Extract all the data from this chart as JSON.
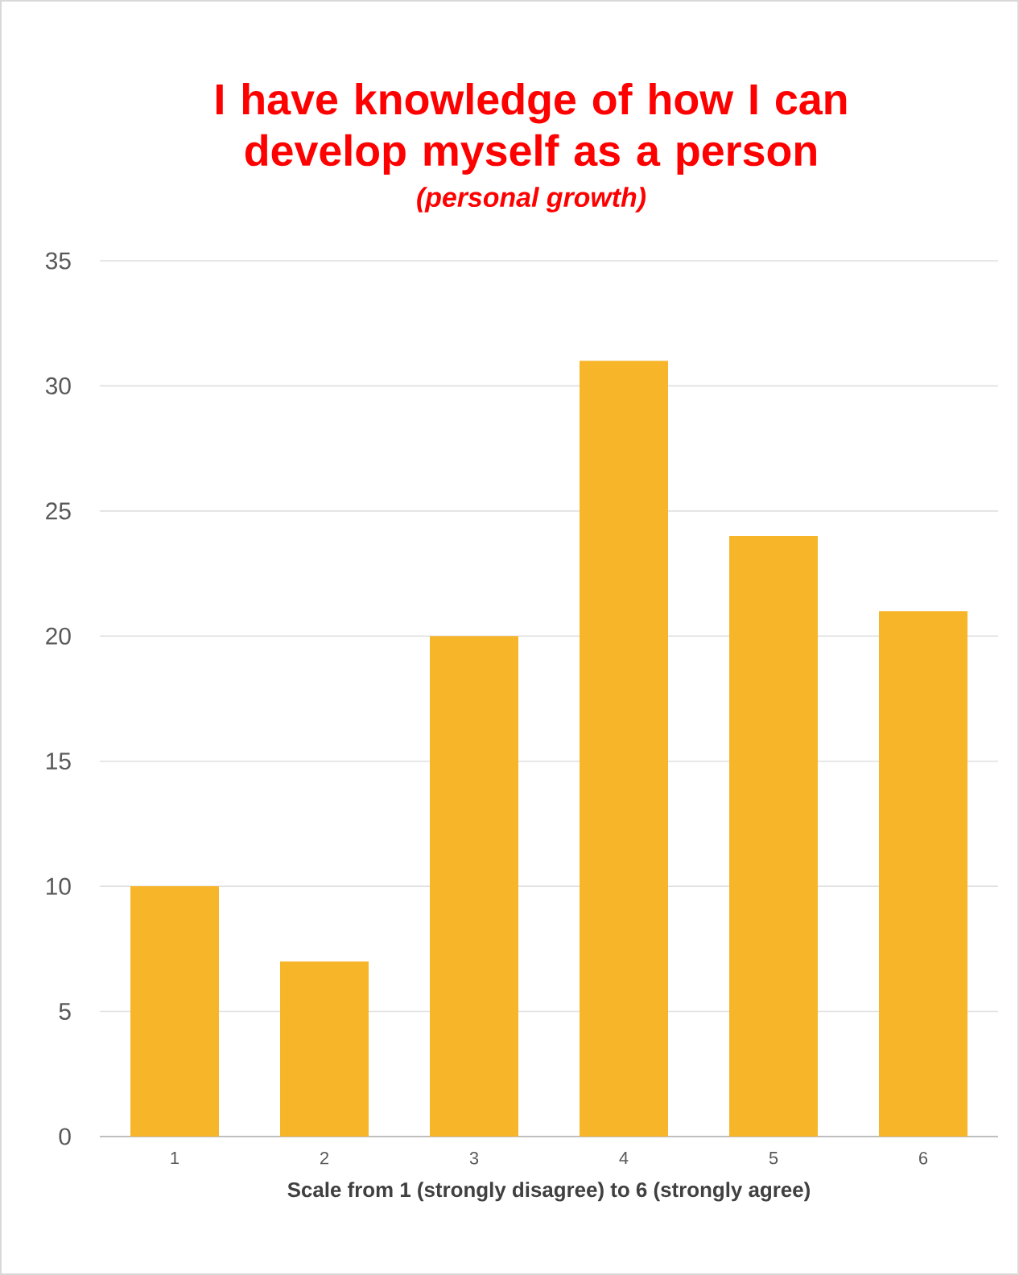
{
  "chart_data": {
    "type": "bar",
    "title": "I have knowledge of how I can develop myself as a person",
    "subtitle": "(personal growth)",
    "xlabel": "Scale from 1 (strongly disagree) to 6  (strongly agree)",
    "categories": [
      "1",
      "2",
      "3",
      "4",
      "5",
      "6"
    ],
    "values": [
      10,
      7,
      20,
      31,
      24,
      21
    ],
    "color": "#f7b52a",
    "ylim": [
      0,
      35
    ],
    "yticks": [
      0,
      5,
      10,
      15,
      20,
      25,
      30,
      35
    ],
    "grid": "y"
  }
}
